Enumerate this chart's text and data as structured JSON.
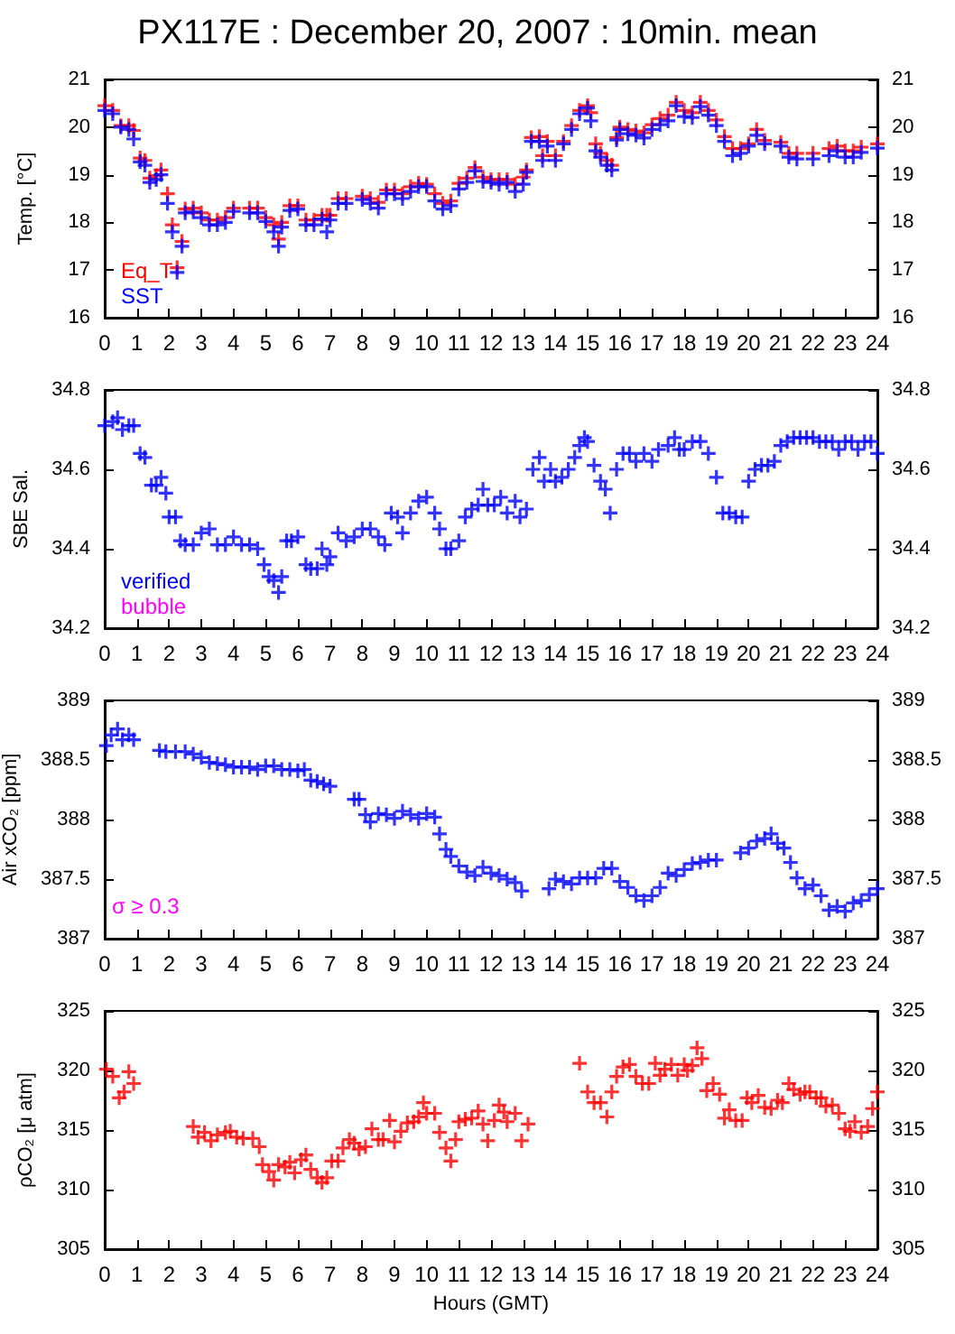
{
  "chart_data": [
    {
      "type": "scatter",
      "title": "PX117E : December 20, 2007 : 10min. mean",
      "ylabel": "Temp. [°C]",
      "marker": "cross",
      "legend": "bottom left",
      "x": [
        0,
        0.25,
        0.5,
        0.75,
        0.9,
        1.1,
        1.25,
        1.4,
        1.6,
        1.75,
        1.95,
        2.1,
        2.25,
        2.4,
        2.5,
        2.75,
        3,
        3.25,
        3.5,
        3.75,
        4,
        4.5,
        4.75,
        5,
        5.25,
        5.4,
        5.5,
        5.75,
        6,
        6.25,
        6.5,
        6.75,
        6.9,
        7,
        7.25,
        7.5,
        8,
        8.25,
        8.5,
        8.75,
        9,
        9.25,
        9.5,
        9.75,
        10,
        10.25,
        10.5,
        10.75,
        11,
        11.25,
        11.5,
        11.75,
        12,
        12.25,
        12.5,
        12.75,
        13,
        13.1,
        13.25,
        13.5,
        13.6,
        13.75,
        14,
        14.25,
        14.5,
        14.75,
        15,
        15.1,
        15.25,
        15.4,
        15.6,
        15.75,
        15.9,
        16,
        16.25,
        16.5,
        16.75,
        17,
        17.25,
        17.5,
        17.75,
        18,
        18.25,
        18.5,
        18.75,
        19,
        19.25,
        19.5,
        19.75,
        20,
        20.25,
        20.5,
        21,
        21.25,
        21.5,
        22,
        22.5,
        22.75,
        23,
        23.25,
        23.5,
        24
      ],
      "series": [
        {
          "name": "Eq_T",
          "color": "#ff0000",
          "values": [
            20.45,
            20.35,
            20.03,
            20.03,
            19.93,
            19.35,
            19.3,
            18.93,
            18.98,
            19.1,
            18.6,
            17.95,
            17.05,
            17.6,
            18.28,
            18.3,
            18.2,
            18.05,
            18.05,
            18.1,
            18.3,
            18.3,
            18.3,
            18.1,
            17.95,
            17.65,
            18.0,
            18.35,
            18.35,
            18.05,
            18.05,
            18.15,
            18.15,
            18.15,
            18.5,
            18.5,
            18.55,
            18.5,
            18.42,
            18.68,
            18.68,
            18.6,
            18.75,
            18.82,
            18.8,
            18.6,
            18.4,
            18.45,
            18.82,
            18.93,
            19.15,
            18.95,
            18.9,
            18.9,
            18.9,
            18.8,
            18.95,
            19.1,
            19.78,
            19.8,
            19.4,
            19.7,
            19.4,
            19.7,
            20.03,
            20.35,
            20.45,
            20.3,
            19.65,
            19.45,
            19.3,
            19.2,
            19.78,
            20.0,
            19.95,
            19.92,
            19.88,
            20.05,
            20.18,
            20.25,
            20.52,
            20.35,
            20.3,
            20.52,
            20.35,
            20.15,
            19.8,
            19.55,
            19.55,
            19.65,
            19.95,
            19.72,
            19.68,
            19.45,
            19.45,
            19.45,
            19.55,
            19.6,
            19.5,
            19.5,
            19.58,
            19.65
          ]
        },
        {
          "name": "SST",
          "color": "#0000ff",
          "values": [
            20.35,
            20.28,
            20.0,
            19.95,
            19.75,
            19.27,
            19.2,
            18.84,
            18.9,
            19.0,
            18.4,
            17.8,
            16.95,
            17.5,
            18.2,
            18.22,
            18.1,
            17.95,
            17.95,
            18.0,
            18.23,
            18.2,
            18.2,
            18.02,
            17.8,
            17.5,
            17.9,
            18.25,
            18.28,
            17.95,
            17.95,
            18.07,
            17.8,
            18.05,
            18.4,
            18.4,
            18.48,
            18.4,
            18.3,
            18.6,
            18.6,
            18.5,
            18.65,
            18.75,
            18.75,
            18.45,
            18.28,
            18.35,
            18.7,
            18.84,
            19.08,
            18.86,
            18.84,
            18.8,
            18.84,
            18.65,
            18.8,
            19.05,
            19.7,
            19.7,
            19.3,
            19.6,
            19.3,
            19.65,
            19.95,
            20.28,
            20.4,
            20.13,
            19.5,
            19.37,
            19.2,
            19.1,
            19.73,
            19.95,
            19.86,
            19.83,
            19.77,
            19.95,
            20.05,
            20.13,
            20.45,
            20.22,
            20.2,
            20.43,
            20.25,
            20.03,
            19.7,
            19.4,
            19.45,
            19.6,
            19.83,
            19.65,
            19.6,
            19.37,
            19.33,
            19.33,
            19.4,
            19.5,
            19.37,
            19.37,
            19.47,
            19.56
          ]
        }
      ],
      "xlim": [
        0,
        24
      ],
      "xticks": [
        0,
        1,
        2,
        3,
        4,
        5,
        6,
        7,
        8,
        9,
        10,
        11,
        12,
        13,
        14,
        15,
        16,
        17,
        18,
        19,
        20,
        21,
        22,
        23,
        24
      ],
      "ylim": [
        16,
        21
      ],
      "yticks": [
        16,
        17,
        18,
        19,
        20,
        21
      ],
      "y2lim": [
        16,
        21
      ],
      "y2ticks": [
        16,
        17,
        18,
        19,
        20,
        21
      ]
    },
    {
      "type": "scatter",
      "ylabel": "SBE Sal.",
      "marker": "cross",
      "legend": "bottom left",
      "x": [
        0,
        0.25,
        0.4,
        0.55,
        0.75,
        0.9,
        1.1,
        1.25,
        1.45,
        1.6,
        1.75,
        1.9,
        2,
        2.2,
        2.35,
        2.5,
        2.75,
        3,
        3.25,
        3.5,
        3.75,
        4,
        4.25,
        4.5,
        4.75,
        4.95,
        5.1,
        5.25,
        5.4,
        5.5,
        5.65,
        5.8,
        6,
        6.25,
        6.4,
        6.6,
        6.75,
        6.9,
        7,
        7.25,
        7.5,
        7.75,
        8,
        8.25,
        8.5,
        8.7,
        8.9,
        9.1,
        9.25,
        9.5,
        9.75,
        10,
        10.25,
        10.4,
        10.6,
        10.75,
        11,
        11.2,
        11.4,
        11.6,
        11.75,
        11.9,
        12.1,
        12.3,
        12.5,
        12.75,
        12.9,
        13.1,
        13.3,
        13.5,
        13.65,
        13.85,
        14,
        14.2,
        14.4,
        14.6,
        14.75,
        14.9,
        15,
        15.2,
        15.4,
        15.55,
        15.7,
        15.9,
        16.1,
        16.3,
        16.5,
        16.75,
        17,
        17.2,
        17.5,
        17.7,
        17.85,
        18,
        18.25,
        18.5,
        18.75,
        19,
        19.2,
        19.4,
        19.6,
        19.8,
        20,
        20.2,
        20.4,
        20.6,
        20.8,
        21,
        21.2,
        21.4,
        21.6,
        21.8,
        22,
        22.2,
        22.4,
        22.6,
        22.8,
        23,
        23.2,
        23.4,
        23.6,
        23.8,
        24
      ],
      "series": [
        {
          "name": "verified",
          "color": "#0000ff",
          "values": [
            34.71,
            34.72,
            34.73,
            34.7,
            34.71,
            34.71,
            34.64,
            34.63,
            34.56,
            34.56,
            34.58,
            34.54,
            34.48,
            34.48,
            34.42,
            34.41,
            34.41,
            34.44,
            34.45,
            34.41,
            34.41,
            34.43,
            34.41,
            34.41,
            34.4,
            34.36,
            34.33,
            34.32,
            34.29,
            34.33,
            34.42,
            34.42,
            34.43,
            34.36,
            34.35,
            34.35,
            34.4,
            34.36,
            34.38,
            34.44,
            34.42,
            34.43,
            34.45,
            34.45,
            34.43,
            34.41,
            34.49,
            34.48,
            34.44,
            34.49,
            34.52,
            34.53,
            34.49,
            34.45,
            34.4,
            34.4,
            34.42,
            34.48,
            34.5,
            34.51,
            34.55,
            34.51,
            34.51,
            34.53,
            34.49,
            34.52,
            34.48,
            34.5,
            34.6,
            34.63,
            34.57,
            34.6,
            34.57,
            34.58,
            34.6,
            34.63,
            34.66,
            34.68,
            34.67,
            34.61,
            34.57,
            34.55,
            34.49,
            34.6,
            34.64,
            34.64,
            34.62,
            34.64,
            34.62,
            34.65,
            34.66,
            34.68,
            34.65,
            34.65,
            34.67,
            34.67,
            34.64,
            34.58,
            34.49,
            34.49,
            34.48,
            34.48,
            34.57,
            34.6,
            34.61,
            34.61,
            34.62,
            34.66,
            34.67,
            34.68,
            34.68,
            34.68,
            34.68,
            34.67,
            34.67,
            34.67,
            34.65,
            34.67,
            34.67,
            34.65,
            34.67,
            34.67,
            34.64
          ]
        },
        {
          "name": "bubble",
          "color": "#ff00ff",
          "values": [
            null,
            null,
            null,
            null,
            null,
            null,
            null,
            null,
            null,
            null,
            null,
            null,
            null,
            null,
            null,
            null,
            null,
            null,
            null,
            null,
            null,
            null,
            null,
            null,
            null,
            null,
            null,
            null,
            null,
            null,
            null,
            null,
            null,
            null,
            null,
            null,
            null,
            null,
            null,
            null,
            null,
            null,
            null,
            null,
            null,
            null,
            null,
            null,
            null,
            null,
            null,
            null,
            null,
            null,
            null,
            null,
            null,
            null,
            null,
            null,
            null,
            null,
            null,
            null,
            null,
            null,
            null,
            null,
            null,
            null,
            null,
            null,
            null,
            null,
            null,
            null,
            null,
            null,
            null,
            null,
            null,
            null,
            null,
            null,
            null,
            null,
            null,
            null,
            null,
            null,
            null,
            null,
            null,
            null,
            null,
            null,
            null,
            null,
            null,
            null,
            null,
            null,
            null,
            null,
            null,
            null,
            null,
            null,
            null,
            null,
            null,
            null,
            null,
            null,
            null,
            null,
            null,
            null,
            null,
            null,
            null,
            null,
            null
          ]
        }
      ],
      "xlim": [
        0,
        24
      ],
      "xticks": [
        0,
        1,
        2,
        3,
        4,
        5,
        6,
        7,
        8,
        9,
        10,
        11,
        12,
        13,
        14,
        15,
        16,
        17,
        18,
        19,
        20,
        21,
        22,
        23,
        24
      ],
      "ylim": [
        34.2,
        34.8
      ],
      "yticks": [
        34.2,
        34.4,
        34.6,
        34.8
      ],
      "y2lim": [
        34.2,
        34.8
      ],
      "y2ticks": [
        34.2,
        34.4,
        34.6,
        34.8
      ]
    },
    {
      "type": "scatter",
      "ylabel": "Air xCO₂ [ppm]",
      "marker": "cross",
      "annotations": [
        "σ ≥ 0.3"
      ],
      "x": [
        0.05,
        0.2,
        0.4,
        0.55,
        0.75,
        0.9,
        1.7,
        1.9,
        2.2,
        2.5,
        2.75,
        3,
        3.25,
        3.5,
        3.75,
        4,
        4.25,
        4.5,
        4.75,
        5,
        5.25,
        5.5,
        5.75,
        6,
        6.2,
        6.4,
        6.6,
        6.8,
        7,
        7.75,
        7.9,
        8.1,
        8.25,
        8.5,
        8.75,
        9,
        9.25,
        9.5,
        9.75,
        10,
        10.25,
        10.4,
        10.6,
        10.75,
        11,
        11.25,
        11.5,
        11.75,
        12,
        12.25,
        12.5,
        12.75,
        12.95,
        13.8,
        14,
        14.25,
        14.5,
        14.75,
        15,
        15.25,
        15.5,
        15.75,
        16,
        16.25,
        16.5,
        16.75,
        17,
        17.25,
        17.5,
        17.75,
        18,
        18.25,
        18.5,
        18.75,
        19,
        19.75,
        20,
        20.25,
        20.5,
        20.7,
        20.9,
        21.1,
        21.3,
        21.5,
        21.75,
        22,
        22.25,
        22.5,
        22.75,
        23,
        23.25,
        23.5,
        23.75,
        24
      ],
      "series": [
        {
          "color": "#0000ff",
          "values": [
            388.62,
            388.71,
            388.76,
            388.67,
            388.71,
            388.67,
            388.58,
            388.57,
            388.57,
            388.57,
            388.55,
            388.52,
            388.48,
            388.47,
            388.46,
            388.44,
            388.44,
            388.44,
            388.42,
            388.45,
            388.45,
            388.42,
            388.42,
            388.41,
            388.42,
            388.33,
            388.32,
            388.3,
            388.28,
            388.17,
            388.17,
            388.04,
            387.98,
            388.05,
            388.04,
            388.01,
            388.07,
            388.04,
            388.01,
            388.05,
            388.02,
            387.88,
            387.75,
            387.69,
            387.61,
            387.56,
            387.53,
            387.6,
            387.55,
            387.53,
            387.5,
            387.47,
            387.4,
            387.42,
            387.5,
            387.48,
            387.46,
            387.51,
            387.51,
            387.51,
            387.59,
            387.59,
            387.48,
            387.43,
            387.36,
            387.32,
            387.36,
            387.43,
            387.55,
            387.53,
            387.58,
            387.63,
            387.64,
            387.66,
            387.66,
            387.72,
            387.76,
            387.82,
            387.84,
            387.88,
            387.8,
            387.76,
            387.64,
            387.51,
            387.42,
            387.45,
            387.36,
            387.24,
            387.27,
            387.23,
            387.3,
            387.32,
            387.37,
            387.42
          ]
        }
      ],
      "xlim": [
        0,
        24
      ],
      "xticks": [
        0,
        1,
        2,
        3,
        4,
        5,
        6,
        7,
        8,
        9,
        10,
        11,
        12,
        13,
        14,
        15,
        16,
        17,
        18,
        19,
        20,
        21,
        22,
        23,
        24
      ],
      "ylim": [
        387,
        389
      ],
      "yticks": [
        387,
        387.5,
        388,
        388.5,
        389
      ],
      "y2lim": [
        387,
        389
      ],
      "y2ticks": [
        387,
        387.5,
        388,
        388.5,
        389
      ]
    },
    {
      "type": "scatter",
      "ylabel": "ρCO₂ [μ atm]",
      "xlabel": "Hours (GMT)",
      "marker": "cross",
      "x": [
        0.05,
        0.25,
        0.45,
        0.6,
        0.75,
        0.9,
        2.75,
        2.9,
        3.1,
        3.3,
        3.5,
        3.75,
        3.9,
        4.1,
        4.3,
        4.6,
        4.8,
        4.9,
        5.1,
        5.25,
        5.4,
        5.6,
        5.75,
        5.9,
        6.1,
        6.25,
        6.4,
        6.6,
        6.75,
        6.9,
        7.05,
        7.25,
        7.4,
        7.6,
        7.75,
        7.9,
        8.1,
        8.3,
        8.5,
        8.65,
        8.85,
        9,
        9.2,
        9.4,
        9.6,
        9.75,
        9.9,
        10,
        10.25,
        10.4,
        10.6,
        10.75,
        10.9,
        11,
        11.2,
        11.4,
        11.6,
        11.75,
        11.9,
        12.1,
        12.25,
        12.4,
        12.5,
        12.75,
        12.95,
        13.15,
        14.75,
        15,
        15.2,
        15.4,
        15.6,
        15.75,
        15.9,
        16.1,
        16.3,
        16.5,
        16.7,
        16.9,
        17.1,
        17.25,
        17.4,
        17.6,
        17.8,
        18,
        18.1,
        18.25,
        18.4,
        18.55,
        18.7,
        18.9,
        19.1,
        19.25,
        19.4,
        19.6,
        19.8,
        19.95,
        20.1,
        20.3,
        20.5,
        20.7,
        20.9,
        21.05,
        21.25,
        21.4,
        21.6,
        21.75,
        21.9,
        22.1,
        22.25,
        22.4,
        22.6,
        22.8,
        23,
        23.15,
        23.3,
        23.5,
        23.7,
        23.85,
        24
      ],
      "series": [
        {
          "color": "#ff0000",
          "values": [
            320.1,
            319.5,
            317.7,
            318.2,
            319.9,
            318.9,
            315.3,
            314.4,
            314.8,
            314.1,
            314.6,
            314.8,
            314.9,
            314.4,
            314.3,
            314.3,
            313.6,
            312.1,
            311.5,
            310.8,
            312.1,
            311.9,
            312.3,
            311.4,
            312.5,
            312.9,
            311.7,
            311.0,
            310.6,
            311.0,
            312.4,
            312.4,
            313.5,
            314.2,
            313.9,
            313.4,
            313.6,
            315.1,
            314.2,
            314.2,
            315.8,
            314.0,
            314.9,
            315.6,
            315.7,
            316.1,
            317.3,
            316.4,
            316.4,
            314.8,
            313.5,
            312.4,
            314.2,
            315.7,
            315.9,
            316.0,
            316.6,
            315.5,
            314.1,
            315.8,
            317.1,
            316.5,
            315.7,
            316.4,
            314.1,
            315.5,
            320.6,
            318.2,
            317.3,
            317.3,
            316.1,
            318.2,
            319.5,
            320.3,
            320.5,
            319.5,
            318.9,
            318.9,
            320.6,
            319.6,
            320.1,
            320.5,
            319.6,
            320.5,
            320.0,
            320.4,
            321.9,
            321.0,
            318.3,
            318.9,
            318.0,
            316.0,
            316.7,
            315.8,
            315.8,
            317.7,
            317.3,
            317.9,
            316.9,
            316.8,
            317.5,
            317.3,
            318.9,
            318.4,
            318.0,
            318.2,
            318.2,
            317.7,
            317.7,
            317.0,
            317.1,
            316.4,
            315.1,
            314.9,
            315.7,
            314.8,
            315.3,
            316.8,
            318.2
          ]
        }
      ],
      "xlim": [
        0,
        24
      ],
      "xticks": [
        0,
        1,
        2,
        3,
        4,
        5,
        6,
        7,
        8,
        9,
        10,
        11,
        12,
        13,
        14,
        15,
        16,
        17,
        18,
        19,
        20,
        21,
        22,
        23,
        24
      ],
      "ylim": [
        305,
        325
      ],
      "yticks": [
        305,
        310,
        315,
        320,
        325
      ],
      "y2lim": [
        305,
        325
      ],
      "y2ticks": [
        305,
        310,
        315,
        320,
        325
      ]
    }
  ]
}
